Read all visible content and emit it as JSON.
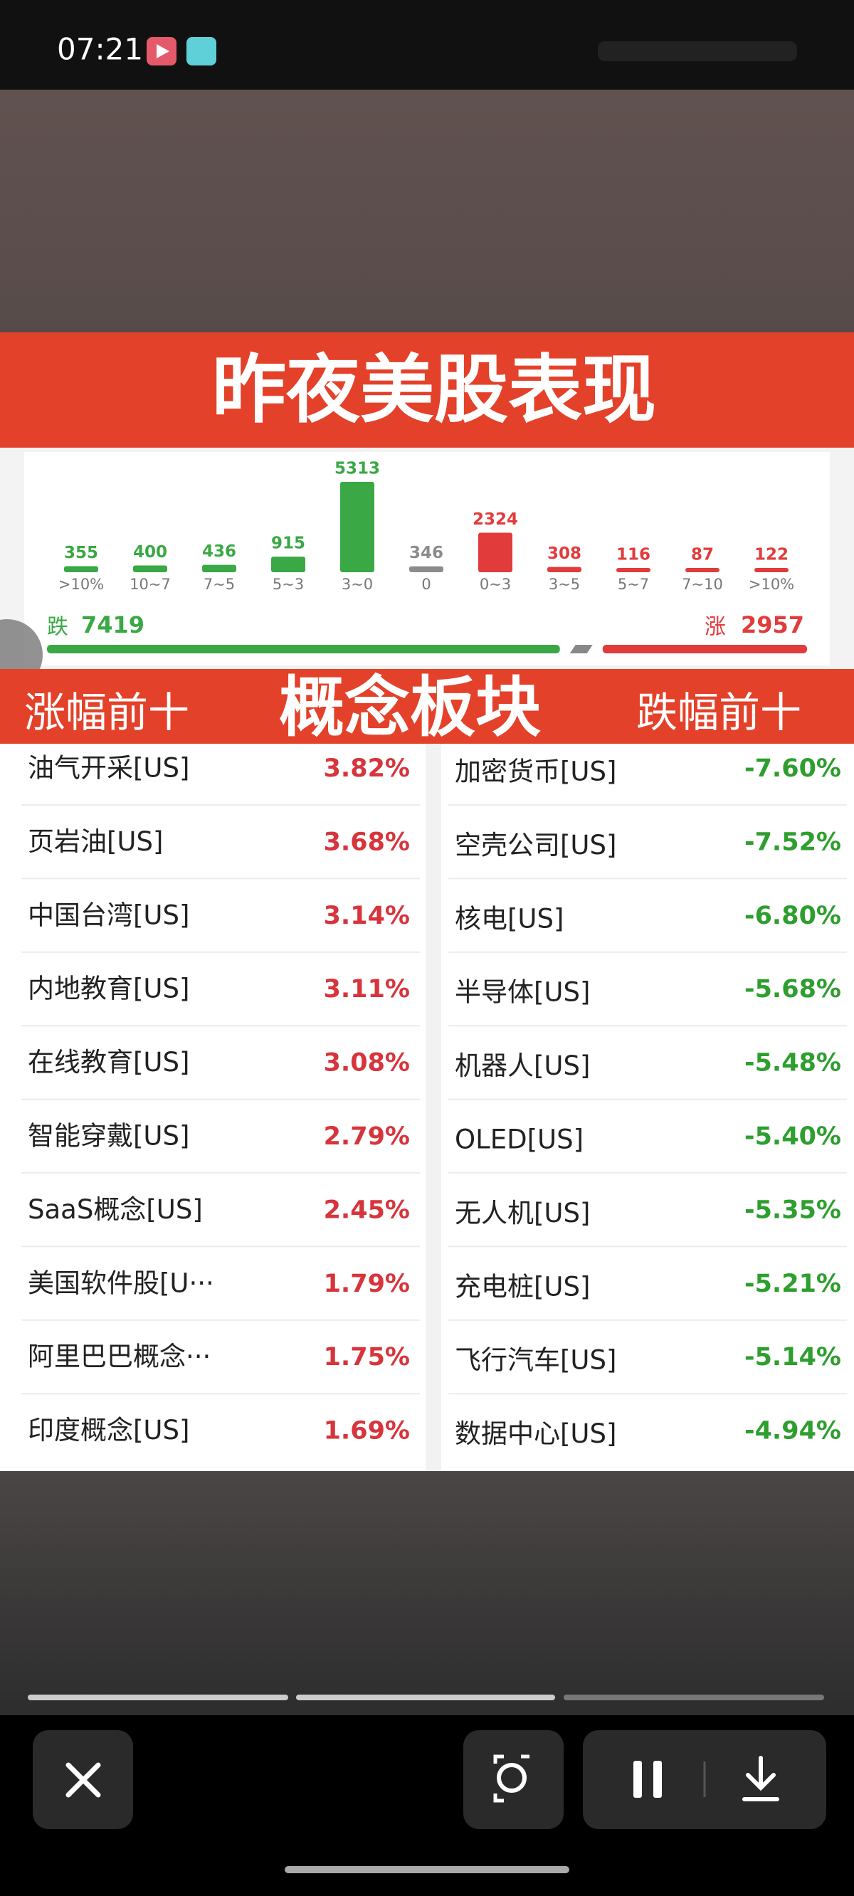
{
  "status_bar": {
    "time": "07:21"
  },
  "banner": {
    "title": "昨夜美股表现"
  },
  "chart_data": {
    "type": "bar",
    "categories": [
      ">10%",
      "10~7",
      "7~5",
      "5~3",
      "3~0",
      "0",
      "0~3",
      "3~5",
      "5~7",
      "7~10",
      ">10%"
    ],
    "values": [
      355,
      400,
      436,
      915,
      5313,
      346,
      2324,
      308,
      116,
      87,
      122
    ],
    "colors": [
      "#3aa845",
      "#3aa845",
      "#3aa845",
      "#3aa845",
      "#3aa845",
      "#8c8c8c",
      "#e23b3b",
      "#e23b3b",
      "#e23b3b",
      "#e23b3b",
      "#e23b3b"
    ],
    "fall": {
      "label": "跌",
      "value": 7419,
      "color": "#3aa845"
    },
    "rise": {
      "label": "涨",
      "value": 2957,
      "color": "#e23b3b"
    }
  },
  "section": {
    "left": "涨幅前十",
    "center": "概念板块",
    "right": "跌幅前十"
  },
  "table": {
    "rows": [
      [
        "油气开采[US]",
        "3.82%",
        "加密货币[US]",
        "-7.60%"
      ],
      [
        "页岩油[US]",
        "3.68%",
        "空壳公司[US]",
        "-7.52%"
      ],
      [
        "中国台湾[US]",
        "3.14%",
        "核电[US]",
        "-6.80%"
      ],
      [
        "内地教育[US]",
        "3.11%",
        "半导体[US]",
        "-5.68%"
      ],
      [
        "在线教育[US]",
        "3.08%",
        "机器人[US]",
        "-5.48%"
      ],
      [
        "智能穿戴[US]",
        "2.79%",
        "OLED[US]",
        "-5.40%"
      ],
      [
        "SaaS概念[US]",
        "2.45%",
        "无人机[US]",
        "-5.35%"
      ],
      [
        "美国软件股[U···",
        "1.79%",
        "充电桩[US]",
        "-5.21%"
      ],
      [
        "阿里巴巴概念···",
        "1.75%",
        "飞行汽车[US]",
        "-5.14%"
      ],
      [
        "印度概念[US]",
        "1.69%",
        "数据中心[US]",
        "-4.94%"
      ]
    ]
  }
}
